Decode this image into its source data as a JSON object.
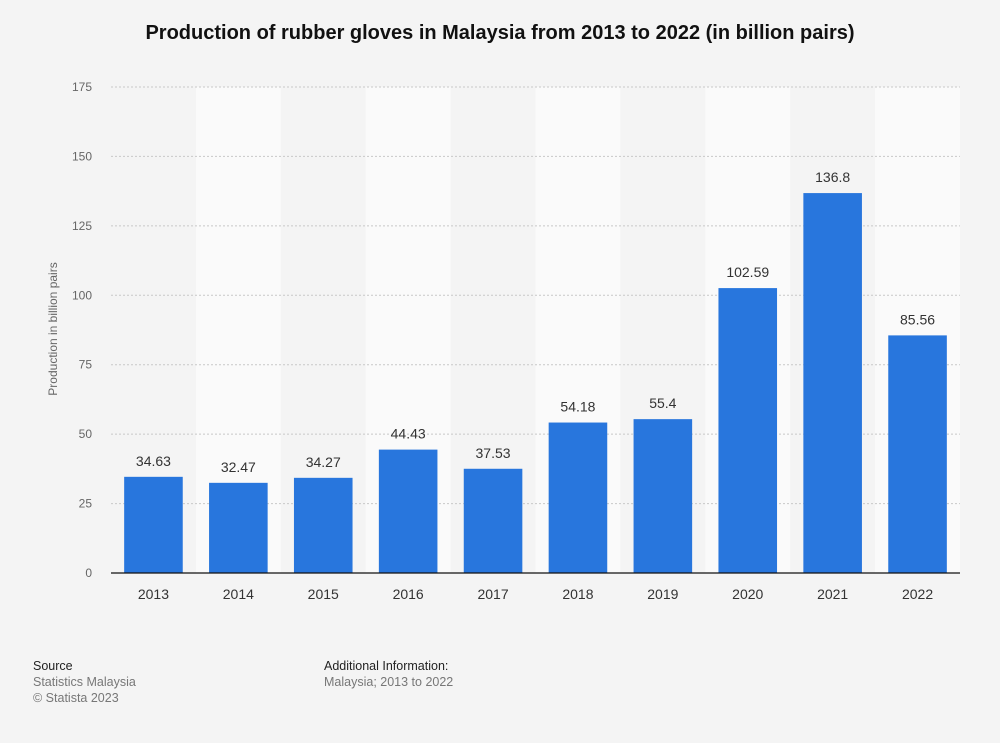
{
  "chart_data": {
    "type": "bar",
    "title": "Production of rubber gloves in Malaysia from 2013 to 2022 (in billion pairs)",
    "xlabel": "",
    "ylabel": "Production in billion pairs",
    "categories": [
      "2013",
      "2014",
      "2015",
      "2016",
      "2017",
      "2018",
      "2019",
      "2020",
      "2021",
      "2022"
    ],
    "values": [
      34.63,
      32.47,
      34.27,
      44.43,
      37.53,
      54.18,
      55.4,
      102.59,
      136.8,
      85.56
    ],
    "value_labels": [
      "34.63",
      "32.47",
      "34.27",
      "44.43",
      "37.53",
      "54.18",
      "55.4",
      "102.59",
      "136.8",
      "85.56"
    ],
    "ylim": [
      0,
      175
    ],
    "yticks": [
      "0",
      "25",
      "50",
      "75",
      "100",
      "125",
      "150",
      "175"
    ],
    "grid": true,
    "bar_color": "#2876dd"
  },
  "footer": {
    "source_heading": "Source",
    "source_lines": [
      "Statistics Malaysia",
      "© Statista 2023"
    ],
    "info_heading": "Additional Information:",
    "info_lines": [
      "Malaysia; 2013 to 2022"
    ]
  }
}
